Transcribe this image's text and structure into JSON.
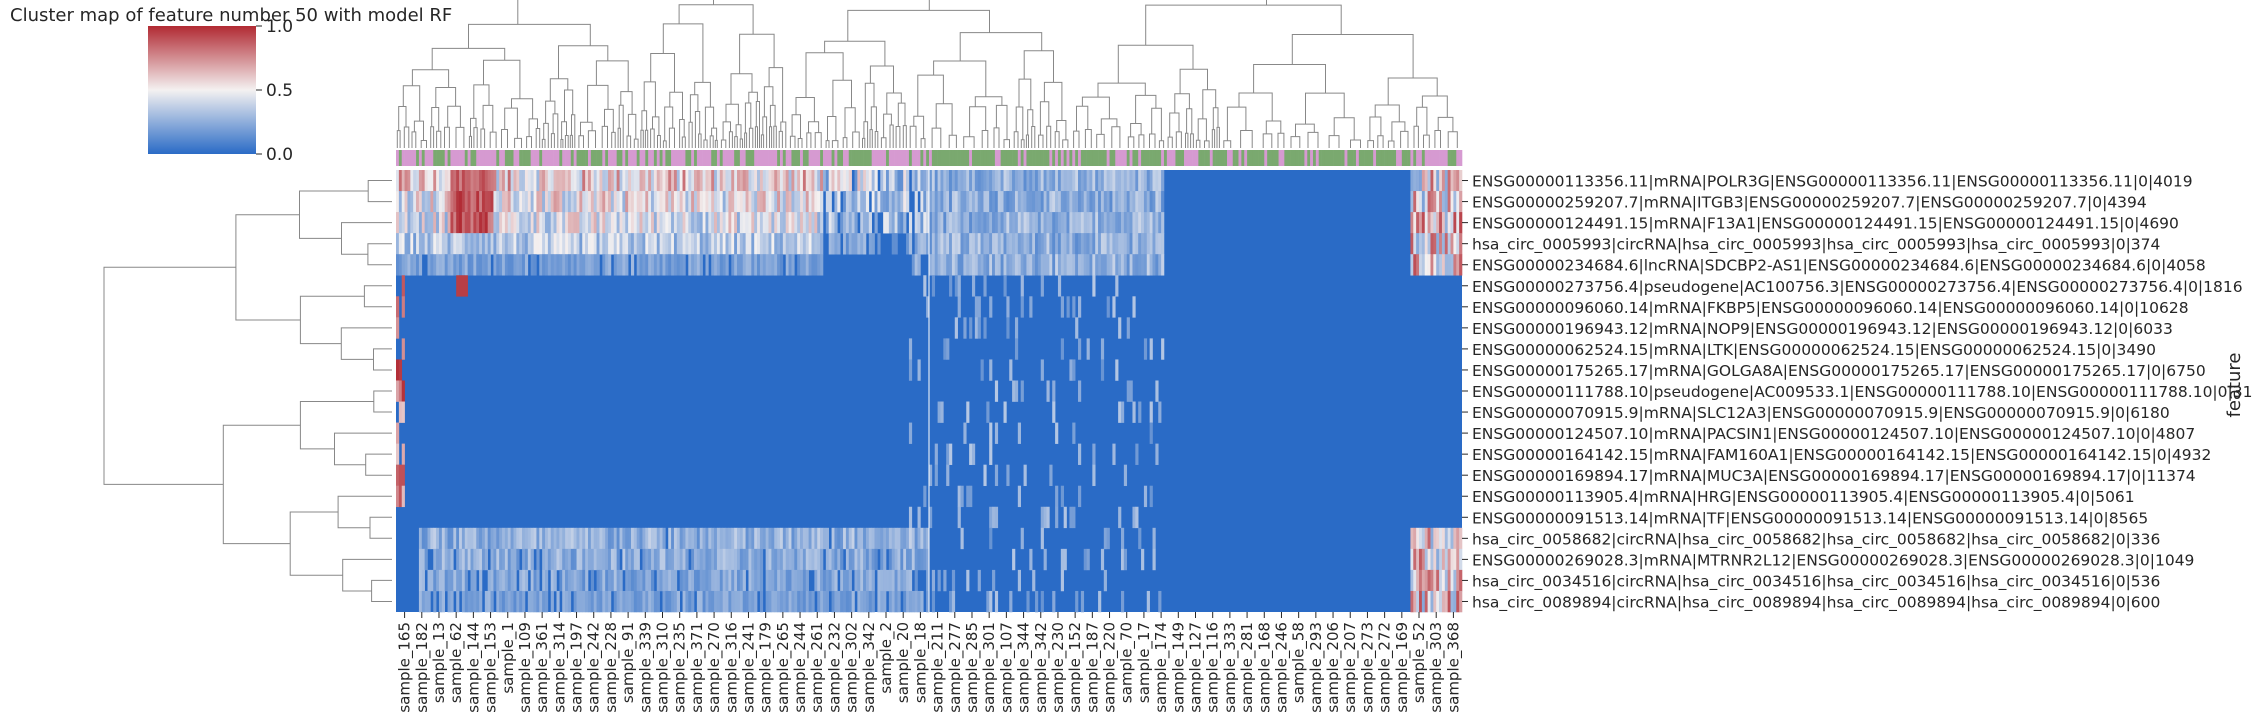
{
  "chart_data": {
    "type": "heatmap",
    "title": "Cluster map of feature number 50 with model RF",
    "colorbar": {
      "ticks": [
        "0.0",
        "0.5",
        "1.0"
      ],
      "range": [
        0,
        1
      ],
      "colormap": "vlag",
      "colors": {
        "low": "#2a6bc6",
        "mid": "#f4f1f1",
        "high": "#b12a33"
      }
    },
    "ylabel": "feature",
    "xlabel": "",
    "row_labels": [
      "ENSG00000113356.11|mRNA|POLR3G|ENSG00000113356.11|ENSG00000113356.11|0|4019",
      "ENSG00000259207.7|mRNA|ITGB3|ENSG00000259207.7|ENSG00000259207.7|0|4394",
      "ENSG00000124491.15|mRNA|F13A1|ENSG00000124491.15|ENSG00000124491.15|0|4690",
      "hsa_circ_0005993|circRNA|hsa_circ_0005993|hsa_circ_0005993|hsa_circ_0005993|0|374",
      "ENSG00000234684.6|lncRNA|SDCBP2-AS1|ENSG00000234684.6|ENSG00000234684.6|0|4058",
      "ENSG00000273756.4|pseudogene|AC100756.3|ENSG00000273756.4|ENSG00000273756.4|0|1816",
      "ENSG00000096060.14|mRNA|FKBP5|ENSG00000096060.14|ENSG00000096060.14|0|10628",
      "ENSG00000196943.12|mRNA|NOP9|ENSG00000196943.12|ENSG00000196943.12|0|6033",
      "ENSG00000062524.15|mRNA|LTK|ENSG00000062524.15|ENSG00000062524.15|0|3490",
      "ENSG00000175265.17|mRNA|GOLGA8A|ENSG00000175265.17|ENSG00000175265.17|0|6750",
      "ENSG00000111788.10|pseudogene|AC009533.1|ENSG00000111788.10|ENSG00000111788.10|0|3158",
      "ENSG00000070915.9|mRNA|SLC12A3|ENSG00000070915.9|ENSG00000070915.9|0|6180",
      "ENSG00000124507.10|mRNA|PACSIN1|ENSG00000124507.10|ENSG00000124507.10|0|4807",
      "ENSG00000164142.15|mRNA|FAM160A1|ENSG00000164142.15|ENSG00000164142.15|0|4932",
      "ENSG00000169894.17|mRNA|MUC3A|ENSG00000169894.17|ENSG00000169894.17|0|11374",
      "ENSG00000113905.4|mRNA|HRG|ENSG00000113905.4|ENSG00000113905.4|0|5061",
      "ENSG00000091513.14|mRNA|TF|ENSG00000091513.14|ENSG00000091513.14|0|8565",
      "hsa_circ_0058682|circRNA|hsa_circ_0058682|hsa_circ_0058682|hsa_circ_0058682|0|336",
      "ENSG00000269028.3|mRNA|MTRNR2L12|ENSG00000269028.3|ENSG00000269028.3|0|1049",
      "hsa_circ_0034516|circRNA|hsa_circ_0034516|hsa_circ_0034516|hsa_circ_0034516|0|536",
      "hsa_circ_0089894|circRNA|hsa_circ_0089894|hsa_circ_0089894|hsa_circ_0089894|0|600"
    ],
    "column_labels": [
      "sample_165",
      "sample_182",
      "sample_13",
      "sample_62",
      "sample_144",
      "sample_153",
      "sample_1",
      "sample_109",
      "sample_361",
      "sample_314",
      "sample_197",
      "sample_242",
      "sample_228",
      "sample_91",
      "sample_339",
      "sample_310",
      "sample_235",
      "sample_371",
      "sample_270",
      "sample_316",
      "sample_241",
      "sample_179",
      "sample_265",
      "sample_244",
      "sample_261",
      "sample_232",
      "sample_302",
      "sample_342",
      "sample_2",
      "sample_20",
      "sample_18",
      "sample_211",
      "sample_277",
      "sample_285",
      "sample_301",
      "sample_107",
      "sample_344",
      "sample_342",
      "sample_230",
      "sample_152",
      "sample_187",
      "sample_220",
      "sample_70",
      "sample_17",
      "sample_174",
      "sample_149",
      "sample_127",
      "sample_116",
      "sample_333",
      "sample_281",
      "sample_168",
      "sample_246",
      "sample_58",
      "sample_293",
      "sample_206",
      "sample_207",
      "sample_273",
      "sample_272",
      "sample_169",
      "sample_52",
      "sample_303",
      "sample_368"
    ],
    "column_label_count": 62,
    "column_annotation_colors": [
      "#7aa96f",
      "#d69ad1"
    ],
    "heatmap_cell_columns": 372,
    "grid": false,
    "legend": "colorbar top-left"
  }
}
